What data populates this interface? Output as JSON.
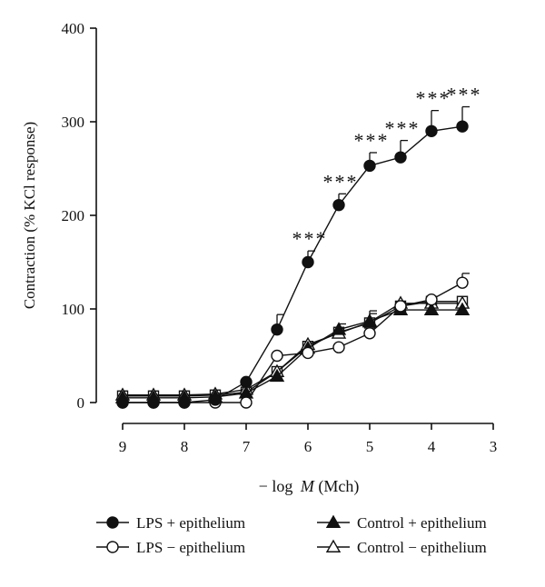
{
  "chart_data": {
    "type": "line",
    "title": "",
    "ylabel": "Contraction (% KCl response)",
    "xlabel_prefix": "− log",
    "xlabel_var": "M",
    "xlabel_suffix": " (Mch)",
    "xlim": [
      9,
      3
    ],
    "ylim": [
      0,
      400
    ],
    "x_ticks": [
      9,
      8,
      7,
      6,
      5,
      4,
      3
    ],
    "y_ticks": [
      0,
      100,
      200,
      300,
      400
    ],
    "x_reversed": true,
    "grid": false,
    "legend_position": "bottom",
    "significance_label": "***",
    "series": [
      {
        "name": "LPS + epithelium",
        "marker": "circle-filled",
        "x": [
          9,
          8.5,
          8,
          7.5,
          7,
          6.5,
          6,
          5.5,
          5,
          4.5,
          4,
          3.5
        ],
        "y": [
          0,
          0,
          0,
          3,
          22,
          78,
          150,
          211,
          253,
          262,
          290,
          295
        ],
        "err": [
          0,
          0,
          0,
          0,
          0,
          16,
          12,
          12,
          14,
          18,
          22,
          21
        ],
        "significant": [
          false,
          false,
          false,
          false,
          false,
          false,
          true,
          true,
          true,
          true,
          true,
          true
        ]
      },
      {
        "name": "LPS − epithelium",
        "marker": "circle-open",
        "x": [
          9,
          8.5,
          8,
          7.5,
          7,
          6.5,
          6,
          5.5,
          5,
          4.5,
          4,
          3.5
        ],
        "y": [
          0,
          0,
          0,
          0,
          0,
          50,
          53,
          59,
          74,
          103,
          110,
          128
        ],
        "err": [
          0,
          0,
          0,
          0,
          0,
          0,
          0,
          0,
          0,
          0,
          0,
          10
        ],
        "significant": []
      },
      {
        "name": "Control + epithelium",
        "marker": "triangle-filled",
        "x": [
          9,
          8.5,
          8,
          7.5,
          7,
          6.5,
          6,
          5.5,
          5,
          4.5,
          4,
          3.5
        ],
        "y": [
          5,
          5,
          5,
          6,
          10,
          28,
          58,
          78,
          87,
          99,
          99,
          99
        ],
        "err": [
          0,
          0,
          0,
          0,
          0,
          0,
          0,
          6,
          8,
          0,
          0,
          0
        ],
        "significant": []
      },
      {
        "name": "Control − epithelium",
        "marker": "triangle-open",
        "x": [
          9,
          8.5,
          8,
          7.5,
          7,
          6.5,
          6,
          5.5,
          5,
          4.5,
          4,
          3.5
        ],
        "y": [
          8,
          8,
          8,
          9,
          14,
          33,
          62,
          74,
          86,
          106,
          106,
          106
        ],
        "err": [
          0,
          0,
          0,
          0,
          0,
          0,
          0,
          0,
          12,
          0,
          0,
          0
        ],
        "significant": []
      },
      {
        "name": "",
        "marker": "square-open",
        "x": [
          9,
          8.5,
          8,
          7.5,
          7,
          6.5,
          6,
          5.5,
          5,
          4.5,
          4,
          3.5
        ],
        "y": [
          7,
          7,
          7,
          8,
          11,
          33,
          60,
          75,
          85,
          103,
          108,
          108
        ],
        "err": [
          0,
          0,
          0,
          0,
          0,
          0,
          0,
          0,
          0,
          0,
          0,
          0
        ],
        "significant": []
      }
    ],
    "colors": {
      "ink": "#111111",
      "background": "#ffffff"
    }
  }
}
